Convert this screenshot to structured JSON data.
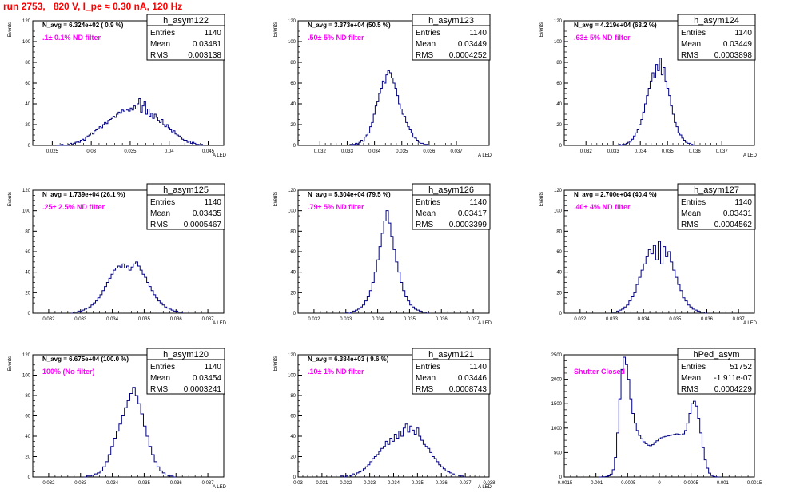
{
  "run_title": "run 2753,   820 V, I_pe ≈ 0.30 nA, 120 Hz",
  "colors": {
    "title": "#ff0000",
    "hist_line": "#000080",
    "annotation": "#ff00ff",
    "axis": "#000000"
  },
  "chart_data": [
    {
      "type": "histogram",
      "name": "h_asym122",
      "ylabel": "Events",
      "xlabel": "A_LED",
      "xlim": [
        0.0225,
        0.047
      ],
      "ylim": [
        0,
        120
      ],
      "yticks": [
        0,
        20,
        40,
        60,
        80,
        100,
        120
      ],
      "xticks": [
        0.025,
        0.03,
        0.035,
        0.04,
        0.045
      ],
      "xtick_labels": [
        "0.025",
        "0.03",
        "0.035",
        "0.04",
        "0.045"
      ],
      "stats": {
        "title": "h_asym122",
        "Entries": "1140",
        "Mean": "0.03481",
        "RMS": "0.003138"
      },
      "n_avg": "N_avg = 6.324e+02 ( 0.9 %)",
      "filter": ".1± 0.1% ND filter",
      "bins": {
        "x0": 0.0255,
        "x1": 0.0445,
        "counts": [
          0,
          0,
          0,
          1,
          0,
          0,
          0,
          1,
          2,
          1,
          2,
          3,
          4,
          3,
          5,
          6,
          5,
          8,
          9,
          10,
          12,
          11,
          14,
          15,
          16,
          18,
          17,
          20,
          22,
          21,
          24,
          25,
          26,
          28,
          27,
          30,
          32,
          31,
          34,
          33,
          35,
          34,
          33,
          36,
          34,
          38,
          35,
          40,
          45,
          32,
          38,
          42,
          30,
          35,
          28,
          31,
          26,
          30,
          27,
          24,
          22,
          25,
          20,
          18,
          20,
          17,
          15,
          13,
          14,
          11,
          10,
          9,
          8,
          6,
          5,
          5,
          3,
          4,
          2,
          3,
          2,
          1,
          1,
          0,
          1,
          0
        ]
      }
    },
    {
      "type": "histogram",
      "name": "h_asym123",
      "ylabel": "Events",
      "xlabel": "A_LED",
      "xlim": [
        0.0312,
        0.0382
      ],
      "ylim": [
        0,
        120
      ],
      "yticks": [
        0,
        20,
        40,
        60,
        80,
        100,
        120
      ],
      "xticks": [
        0.032,
        0.033,
        0.034,
        0.035,
        0.036,
        0.037
      ],
      "xtick_labels": [
        "0.032",
        "0.033",
        "0.034",
        "0.035",
        "0.036",
        "0.037"
      ],
      "stats": {
        "title": "h_asym123",
        "Entries": "1140",
        "Mean": "0.03449",
        "RMS": "0.0004252"
      },
      "n_avg": "N_avg = 3.373e+04 (50.5 %)",
      "filter": ".50± 5% ND filter",
      "bins": {
        "x0": 0.0331,
        "x1": 0.036,
        "counts": [
          1,
          0,
          1,
          2,
          1,
          3,
          5,
          4,
          8,
          10,
          12,
          18,
          22,
          30,
          38,
          42,
          50,
          55,
          62,
          60,
          68,
          72,
          70,
          65,
          60,
          55,
          48,
          40,
          35,
          30,
          28,
          22,
          18,
          15,
          12,
          8,
          7,
          5,
          3,
          2,
          2,
          1,
          1,
          0
        ]
      }
    },
    {
      "type": "histogram",
      "name": "h_asym124",
      "ylabel": "Events",
      "xlabel": "A_LED",
      "xlim": [
        0.0312,
        0.0382
      ],
      "ylim": [
        0,
        120
      ],
      "yticks": [
        0,
        20,
        40,
        60,
        80,
        100,
        120
      ],
      "xticks": [
        0.032,
        0.033,
        0.034,
        0.035,
        0.036,
        0.037
      ],
      "xtick_labels": [
        "0.032",
        "0.033",
        "0.034",
        "0.035",
        "0.036",
        "0.037"
      ],
      "stats": {
        "title": "h_asym124",
        "Entries": "1140",
        "Mean": "0.03449",
        "RMS": "0.0003898"
      },
      "n_avg": "N_avg = 4.219e+04 (63.2 %)",
      "filter": ".63± 5% ND filter",
      "bins": {
        "x0": 0.0332,
        "x1": 0.036,
        "counts": [
          1,
          0,
          1,
          1,
          2,
          3,
          4,
          6,
          9,
          12,
          15,
          20,
          25,
          32,
          40,
          48,
          55,
          62,
          70,
          65,
          78,
          72,
          84,
          68,
          75,
          62,
          55,
          48,
          38,
          30,
          22,
          18,
          12,
          10,
          7,
          5,
          3,
          2,
          2,
          1,
          0
        ]
      }
    },
    {
      "type": "histogram",
      "name": "h_asym125",
      "ylabel": "Events",
      "xlabel": "A_LED",
      "xlim": [
        0.0315,
        0.0375
      ],
      "ylim": [
        0,
        120
      ],
      "yticks": [
        0,
        20,
        40,
        60,
        80,
        100,
        120
      ],
      "xticks": [
        0.032,
        0.033,
        0.034,
        0.035,
        0.036,
        0.037
      ],
      "xtick_labels": [
        "0.032",
        "0.033",
        "0.034",
        "0.035",
        "0.036",
        "0.037"
      ],
      "stats": {
        "title": "h_asym125",
        "Entries": "1140",
        "Mean": "0.03435",
        "RMS": "0.0005467"
      },
      "n_avg": "N_avg = 1.739e+04 (26.1 %)",
      "filter": ".25± 2.5% ND filter",
      "bins": {
        "x0": 0.0327,
        "x1": 0.0362,
        "counts": [
          0,
          1,
          1,
          2,
          2,
          3,
          4,
          5,
          6,
          8,
          10,
          12,
          15,
          18,
          22,
          26,
          30,
          34,
          38,
          42,
          44,
          46,
          45,
          48,
          44,
          46,
          42,
          45,
          48,
          50,
          46,
          42,
          38,
          35,
          30,
          26,
          22,
          18,
          15,
          12,
          10,
          8,
          6,
          5,
          4,
          3,
          2,
          2,
          1,
          1
        ]
      }
    },
    {
      "type": "histogram",
      "name": "h_asym126",
      "ylabel": "Events",
      "xlabel": "A_LED",
      "xlim": [
        0.0315,
        0.0375
      ],
      "ylim": [
        0,
        120
      ],
      "yticks": [
        0,
        20,
        40,
        60,
        80,
        100,
        120
      ],
      "xticks": [
        0.032,
        0.033,
        0.034,
        0.035,
        0.036,
        0.037
      ],
      "xtick_labels": [
        "0.032",
        "0.033",
        "0.034",
        "0.035",
        "0.036",
        "0.037"
      ],
      "stats": {
        "title": "h_asym126",
        "Entries": "1140",
        "Mean": "0.03417",
        "RMS": "0.0003399"
      },
      "n_avg": "N_avg = 5.304e+04 (79.5 %)",
      "filter": ".79± 5% ND filter",
      "bins": {
        "x0": 0.033,
        "x1": 0.0356,
        "counts": [
          1,
          0,
          1,
          2,
          3,
          4,
          6,
          8,
          12,
          16,
          22,
          30,
          40,
          52,
          65,
          78,
          90,
          100,
          88,
          75,
          62,
          50,
          40,
          30,
          22,
          16,
          12,
          8,
          6,
          4,
          3,
          2,
          1,
          1,
          0
        ]
      }
    },
    {
      "type": "histogram",
      "name": "h_asym127",
      "ylabel": "Events",
      "xlabel": "A_LED",
      "xlim": [
        0.0315,
        0.0375
      ],
      "ylim": [
        0,
        120
      ],
      "yticks": [
        0,
        20,
        40,
        60,
        80,
        100,
        120
      ],
      "xticks": [
        0.032,
        0.033,
        0.034,
        0.035,
        0.036,
        0.037
      ],
      "xtick_labels": [
        "0.032",
        "0.033",
        "0.034",
        "0.035",
        "0.036",
        "0.037"
      ],
      "stats": {
        "title": "h_asym127",
        "Entries": "1140",
        "Mean": "0.03431",
        "RMS": "0.0004562"
      },
      "n_avg": "N_avg = 2.700e+04 (40.4 %)",
      "filter": ".40± 4% ND filter",
      "bins": {
        "x0": 0.033,
        "x1": 0.036,
        "counts": [
          1,
          1,
          2,
          3,
          4,
          6,
          8,
          12,
          16,
          20,
          28,
          35,
          42,
          48,
          55,
          62,
          58,
          66,
          52,
          70,
          48,
          65,
          55,
          60,
          50,
          42,
          35,
          28,
          22,
          15,
          12,
          8,
          6,
          4,
          3,
          2,
          1,
          1,
          0
        ]
      }
    },
    {
      "type": "histogram",
      "name": "h_asym120",
      "ylabel": "Events",
      "xlabel": "A_LED",
      "xlim": [
        0.0315,
        0.0375
      ],
      "ylim": [
        0,
        120
      ],
      "yticks": [
        0,
        20,
        40,
        60,
        80,
        100,
        120
      ],
      "xticks": [
        0.032,
        0.033,
        0.034,
        0.035,
        0.036,
        0.037
      ],
      "xtick_labels": [
        "0.032",
        "0.033",
        "0.034",
        "0.035",
        "0.036",
        "0.037"
      ],
      "stats": {
        "title": "h_asym120",
        "Entries": "1140",
        "Mean": "0.03454",
        "RMS": "0.0003241"
      },
      "n_avg": "N_avg = 6.675e+04 (100.0 %)",
      "filter": "100% (No filter)",
      "bins": {
        "x0": 0.0331,
        "x1": 0.036,
        "counts": [
          0,
          1,
          1,
          2,
          3,
          4,
          6,
          10,
          15,
          22,
          30,
          38,
          45,
          52,
          60,
          68,
          75,
          82,
          88,
          80,
          72,
          62,
          50,
          40,
          30,
          22,
          15,
          10,
          6,
          4,
          2,
          1,
          1,
          0
        ]
      }
    },
    {
      "type": "histogram",
      "name": "h_asym121",
      "ylabel": "Events",
      "xlabel": "A_LED",
      "xlim": [
        0.03,
        0.038
      ],
      "ylim": [
        0,
        120
      ],
      "yticks": [
        0,
        20,
        40,
        60,
        80,
        100,
        120
      ],
      "xticks": [
        0.03,
        0.031,
        0.032,
        0.033,
        0.034,
        0.035,
        0.036,
        0.037,
        0.038
      ],
      "xtick_labels": [
        "0.03",
        "0.031",
        "0.032",
        "0.033",
        "0.034",
        "0.035",
        "0.036",
        "0.037",
        "0.038"
      ],
      "stats": {
        "title": "h_asym121",
        "Entries": "1140",
        "Mean": "0.03446",
        "RMS": "0.0008743"
      },
      "n_avg": "N_avg = 6.384e+03 ( 9.6 %)",
      "filter": ".10± 1% ND filter",
      "bins": {
        "x0": 0.0318,
        "x1": 0.037,
        "counts": [
          1,
          0,
          1,
          2,
          1,
          3,
          2,
          4,
          5,
          6,
          8,
          10,
          12,
          15,
          18,
          20,
          22,
          25,
          28,
          30,
          35,
          32,
          38,
          35,
          42,
          38,
          45,
          40,
          48,
          52,
          44,
          50,
          46,
          42,
          48,
          40,
          36,
          32,
          30,
          28,
          24,
          20,
          18,
          15,
          12,
          10,
          8,
          6,
          5,
          4,
          3,
          2,
          2,
          1,
          1,
          0
        ]
      }
    },
    {
      "type": "histogram",
      "name": "hPed_asym",
      "ylabel": "",
      "xlabel": "",
      "xlim": [
        -0.0015,
        0.0015
      ],
      "ylim": [
        0,
        2500
      ],
      "yticks": [
        0,
        500,
        1000,
        1500,
        2000,
        2500
      ],
      "xticks": [
        -0.0015,
        -0.001,
        -0.0005,
        0,
        0.0005,
        0.001,
        0.0015
      ],
      "xtick_labels": [
        "-0.0015",
        "-0.001",
        "-0.0005",
        "0",
        "0.0005",
        "0.001",
        "0.0015"
      ],
      "stats": {
        "title": "hPed_asym",
        "Entries": "51752",
        "Mean": "-1.911e-07",
        "RMS": "0.0004229"
      },
      "n_avg": "",
      "filter": "Shutter Closed",
      "bins": {
        "x0": -0.00095,
        "x1": 0.00095,
        "counts": [
          0,
          2,
          5,
          10,
          25,
          60,
          150,
          400,
          900,
          1600,
          2200,
          2450,
          2300,
          2000,
          1600,
          1300,
          1100,
          950,
          850,
          780,
          720,
          680,
          650,
          640,
          660,
          700,
          740,
          780,
          800,
          820,
          830,
          840,
          850,
          860,
          870,
          880,
          870,
          860,
          880,
          950,
          1100,
          1300,
          1500,
          1550,
          1450,
          1200,
          900,
          600,
          350,
          180,
          80,
          30,
          10,
          3,
          1
        ]
      }
    }
  ]
}
